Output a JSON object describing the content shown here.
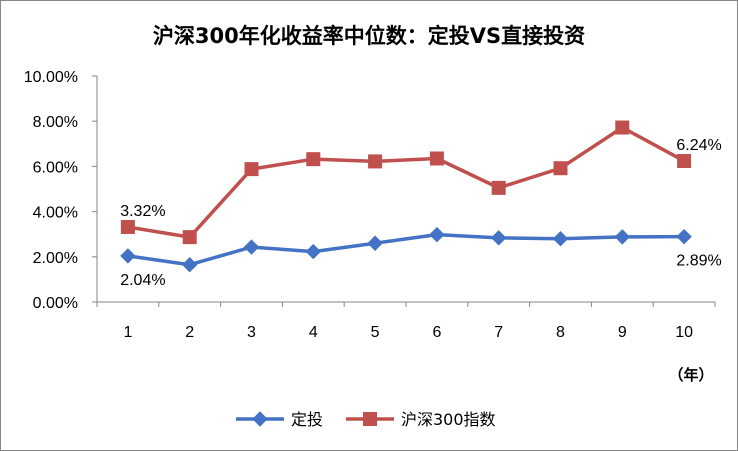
{
  "chart_data": {
    "type": "line",
    "title": "沪深300年化收益率中位数：定投VS直接投资",
    "categories": [
      "1",
      "2",
      "3",
      "4",
      "5",
      "6",
      "7",
      "8",
      "9",
      "10"
    ],
    "x_unit_label": "（年）",
    "ylim": [
      0,
      10
    ],
    "y_ticks": [
      "0.00%",
      "2.00%",
      "4.00%",
      "6.00%",
      "8.00%",
      "10.00%"
    ],
    "y_tick_values": [
      0,
      2,
      4,
      6,
      8,
      10
    ],
    "grid": false,
    "legend_position": "bottom",
    "series": [
      {
        "name": "定投",
        "color": "#4472C4",
        "marker": "diamond",
        "values": [
          2.04,
          1.65,
          2.43,
          2.23,
          2.6,
          2.98,
          2.84,
          2.8,
          2.88,
          2.89
        ]
      },
      {
        "name": "沪深300指数",
        "color": "#C0504D",
        "marker": "square",
        "values": [
          3.32,
          2.87,
          5.88,
          6.32,
          6.22,
          6.35,
          5.05,
          5.92,
          7.72,
          6.24
        ]
      }
    ],
    "annotations": [
      {
        "series": 1,
        "index": 0,
        "text": "3.32%",
        "placement": "above"
      },
      {
        "series": 0,
        "index": 0,
        "text": "2.04%",
        "placement": "below"
      },
      {
        "series": 1,
        "index": 9,
        "text": "6.24%",
        "placement": "above"
      },
      {
        "series": 0,
        "index": 9,
        "text": "2.89%",
        "placement": "below"
      }
    ]
  }
}
